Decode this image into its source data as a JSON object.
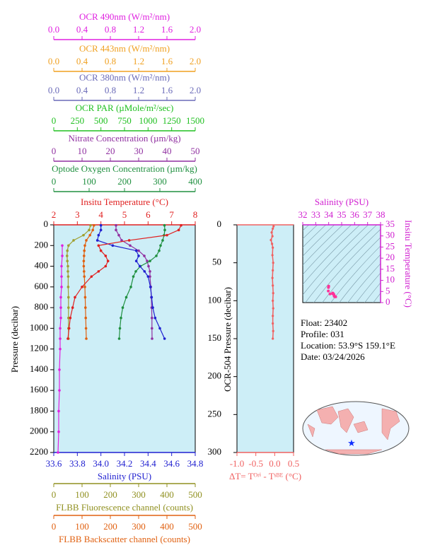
{
  "chart_data": {
    "main": {
      "type": "line",
      "ylabel": "Pressure (decibar)",
      "ylim": [
        0,
        2200
      ],
      "yticks": [
        0,
        200,
        400,
        600,
        800,
        1000,
        1200,
        1400,
        1600,
        1800,
        2000,
        2200
      ],
      "axes": [
        {
          "title": "OCR 490nm (W/m²/nm)",
          "position": "top",
          "color": "#e020e0",
          "lim": [
            0,
            2
          ],
          "ticks": [
            {
              "value": 0,
              "label": "0.0"
            },
            0.4,
            0.8,
            1.2,
            1.6,
            {
              "value": 2,
              "label": "2.0"
            }
          ]
        },
        {
          "title": "OCR 443nm (W/m²/nm)",
          "position": "top",
          "color": "#f0a020",
          "lim": [
            0,
            2
          ],
          "ticks": [
            {
              "value": 0,
              "label": "0.0"
            },
            0.4,
            0.8,
            1.2,
            1.6,
            {
              "value": 2,
              "label": "2.0"
            }
          ]
        },
        {
          "title": "OCR 380nm (W/m²/nm)",
          "position": "top",
          "color": "#6a6ab8",
          "lim": [
            0,
            2
          ],
          "ticks": [
            {
              "value": 0,
              "label": "0.0"
            },
            0.4,
            0.8,
            1.2,
            1.6,
            {
              "value": 2,
              "label": "2.0"
            }
          ]
        },
        {
          "title": "OCR PAR (µMole/m²/sec)",
          "position": "top",
          "color": "#20c020",
          "lim": [
            0,
            1500
          ],
          "ticks": [
            0,
            250,
            500,
            750,
            1000,
            1250,
            1500
          ]
        },
        {
          "title": "Nitrate Concentration (µm/kg)",
          "position": "top",
          "color": "#9030a0",
          "lim": [
            0,
            50
          ],
          "ticks": [
            0,
            10,
            20,
            30,
            40,
            50
          ]
        },
        {
          "title": "Optode Oxygen Concentration (µm/kg)",
          "position": "top",
          "color": "#209040",
          "lim": [
            0,
            400
          ],
          "ticks": [
            0,
            100,
            200,
            300,
            400
          ]
        },
        {
          "title": "Insitu Temperature (°C)",
          "position": "top",
          "color": "#e02020",
          "lim": [
            2,
            8
          ],
          "ticks": [
            2,
            3,
            4,
            5,
            6,
            7,
            8
          ]
        },
        {
          "title": "Salinity (PSU)",
          "position": "bottom",
          "color": "#2020d0",
          "lim": [
            33.6,
            34.8
          ],
          "ticks": [
            33.6,
            33.8,
            {
              "value": 34,
              "label": "34.0"
            },
            34.2,
            34.4,
            34.6,
            34.8
          ]
        },
        {
          "title": "FLBB Fluorescence channel (counts)",
          "position": "bottom",
          "color": "#909020",
          "lim": [
            0,
            500
          ],
          "ticks": [
            0,
            100,
            200,
            300,
            400,
            500
          ]
        },
        {
          "title": "FLBB Backscatter channel (counts)",
          "position": "bottom",
          "color": "#e06010",
          "lim": [
            0,
            500
          ],
          "ticks": [
            0,
            100,
            200,
            300,
            400,
            500
          ]
        }
      ],
      "pressure": [
        5,
        50,
        100,
        150,
        200,
        250,
        300,
        350,
        400,
        450,
        500,
        600,
        700,
        800,
        900,
        1000,
        1100
      ],
      "series": [
        {
          "axis": 0,
          "color": "#e020e0",
          "pressure": [
            200,
            300,
            400,
            500,
            600,
            700,
            800,
            900,
            1000,
            1100,
            1200,
            1400,
            1600,
            1800,
            2000,
            2200
          ],
          "values": [
            0.12,
            0.12,
            0.11,
            0.11,
            0.11,
            0.1,
            0.1,
            0.1,
            0.09,
            0.09,
            0.09,
            0.08,
            0.08,
            0.07,
            0.07,
            0.06
          ]
        },
        {
          "axis": 8,
          "color": "#a0a030",
          "values": [
            130,
            125,
            105,
            70,
            52,
            48,
            47,
            48,
            50,
            50,
            51,
            51,
            52,
            52,
            52,
            52,
            52
          ]
        },
        {
          "axis": 9,
          "color": "#e06010",
          "values": [
            142,
            138,
            128,
            115,
            110,
            108,
            107,
            106,
            106,
            107,
            108,
            110,
            111,
            112,
            113,
            114,
            115
          ]
        },
        {
          "axis": 4,
          "color": "#9030a0",
          "values": [
            22,
            22,
            23,
            24,
            27,
            30,
            32,
            33,
            33.5,
            34,
            34,
            34.3,
            34.5,
            34.6,
            34.7,
            34.7,
            34.75
          ]
        },
        {
          "axis": 5,
          "color": "#209040",
          "values": [
            313,
            314,
            312,
            308,
            302,
            298,
            290,
            272,
            245,
            232,
            225,
            218,
            205,
            195,
            190,
            187,
            185
          ]
        },
        {
          "axis": 7,
          "color": "#2020d0",
          "values": [
            34,
            34,
            33.98,
            33.97,
            34.1,
            34.3,
            34.32,
            34.3,
            34.33,
            34.37,
            34.4,
            34.42,
            34.43,
            34.44,
            34.46,
            34.5,
            34.54
          ]
        },
        {
          "axis": 6,
          "color": "#e02020",
          "values": [
            7.4,
            7.3,
            6.8,
            5.2,
            3.9,
            4,
            4.2,
            4.3,
            4.2,
            3.9,
            3.6,
            3.2,
            2.9,
            2.8,
            2.7,
            2.65,
            2.6
          ]
        }
      ]
    },
    "delta": {
      "ylabel": "OCR-504 Pressure (decibar)",
      "ylim": [
        0,
        300
      ],
      "yticks": [
        0,
        50,
        100,
        150,
        200,
        250,
        300
      ],
      "xlabel": "ΔT= Tᴼʳⁱ - Tˢᴮᴱ (°C)",
      "xlim": [
        -1,
        0.5
      ],
      "color": "#f06060",
      "xticks": [
        {
          "value": -1,
          "label": "-1.0"
        },
        {
          "value": -0.5,
          "label": "-0.5"
        },
        {
          "value": 0,
          "label": "0.0"
        },
        0.5
      ],
      "pressure": [
        2,
        5,
        10,
        15,
        20,
        25,
        30,
        40,
        50,
        60,
        70,
        80,
        90,
        100,
        110,
        120,
        130,
        140,
        150
      ],
      "values": [
        -0.03,
        -0.05,
        -0.08,
        -0.06,
        -0.1,
        -0.07,
        -0.05,
        -0.06,
        -0.04,
        -0.05,
        -0.06,
        -0.05,
        -0.04,
        -0.05,
        -0.04,
        -0.05,
        -0.05,
        -0.04,
        -0.05
      ]
    },
    "ts": {
      "xlabel": "Salinity (PSU)",
      "xlim": [
        32,
        38
      ],
      "xticks": [
        32,
        33,
        34,
        35,
        36,
        37,
        38
      ],
      "ylabel": "Insitu Temperature (°C)",
      "ylim": [
        0,
        35
      ],
      "yticks": [
        0,
        5,
        10,
        15,
        20,
        25,
        30,
        35
      ],
      "color": "#d020d0",
      "point_color": "#ff3399"
    },
    "info": [
      "Float:  23402",
      "Profile:  031",
      "Location:  53.9°S  159.1°E",
      "Date:  03/24/2026"
    ]
  }
}
